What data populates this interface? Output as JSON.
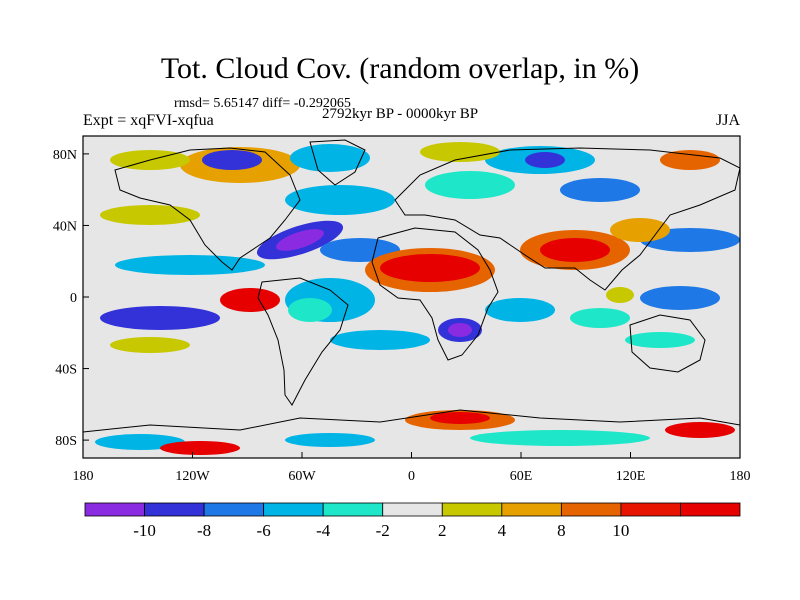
{
  "title": "Tot. Cloud Cov. (random overlap, in %)",
  "stats": "rmsd= 5.65147 diff= -0.292065",
  "left_label": "Expt = xqFVI-xqfua",
  "center_label": "2792kyr BP - 0000kyr BP",
  "right_label": "JJA",
  "map": {
    "background": "#e6e6e6",
    "x_ticks": [
      {
        "lon": -180,
        "label": "180"
      },
      {
        "lon": -120,
        "label": "120W"
      },
      {
        "lon": -60,
        "label": "60W"
      },
      {
        "lon": 0,
        "label": "0"
      },
      {
        "lon": 60,
        "label": "60E"
      },
      {
        "lon": 120,
        "label": "120E"
      },
      {
        "lon": 180,
        "label": "180"
      }
    ],
    "y_ticks": [
      {
        "lat": 80,
        "label": "80N"
      },
      {
        "lat": 40,
        "label": "40N"
      },
      {
        "lat": 0,
        "label": "0"
      },
      {
        "lat": -40,
        "label": "40S"
      },
      {
        "lat": -80,
        "label": "80S"
      }
    ]
  },
  "colorbar": {
    "colors": [
      "#8a2be2",
      "#3232d8",
      "#1e78e6",
      "#00b4e6",
      "#1ee6c8",
      "#e6e6e6",
      "#c8c800",
      "#e6a000",
      "#e66400",
      "#e61400",
      "#e60000"
    ],
    "labels": [
      "-10",
      "-8",
      "-6",
      "-4",
      "-2",
      "2",
      "4",
      "8",
      "10"
    ]
  }
}
